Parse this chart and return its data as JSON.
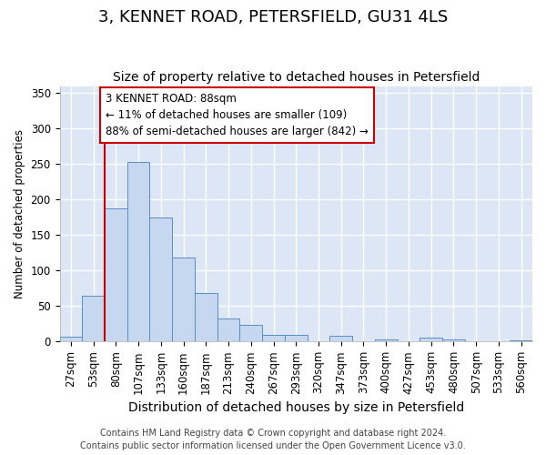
{
  "title": "3, KENNET ROAD, PETERSFIELD, GU31 4LS",
  "subtitle": "Size of property relative to detached houses in Petersfield",
  "xlabel": "Distribution of detached houses by size in Petersfield",
  "ylabel": "Number of detached properties",
  "footer_line1": "Contains HM Land Registry data © Crown copyright and database right 2024.",
  "footer_line2": "Contains public sector information licensed under the Open Government Licence v3.0.",
  "categories": [
    "27sqm",
    "53sqm",
    "80sqm",
    "107sqm",
    "133sqm",
    "160sqm",
    "187sqm",
    "213sqm",
    "240sqm",
    "267sqm",
    "293sqm",
    "320sqm",
    "347sqm",
    "373sqm",
    "400sqm",
    "427sqm",
    "453sqm",
    "480sqm",
    "507sqm",
    "533sqm",
    "560sqm"
  ],
  "values": [
    7,
    65,
    187,
    253,
    175,
    118,
    68,
    33,
    24,
    10,
    9,
    0,
    8,
    0,
    3,
    0,
    5,
    3,
    0,
    1,
    2
  ],
  "bar_color": "#c5d8f0",
  "bar_edge_color": "#5b8ec4",
  "background_color": "#dce6f5",
  "grid_color": "#ffffff",
  "annotation_line1": "3 KENNET ROAD: 88sqm",
  "annotation_line2": "← 11% of detached houses are smaller (109)",
  "annotation_line3": "88% of semi-detached houses are larger (842) →",
  "annotation_box_color": "#ffffff",
  "annotation_box_edge_color": "#cc0000",
  "vline_color": "#cc0000",
  "ylim": [
    0,
    360
  ],
  "yticks": [
    0,
    50,
    100,
    150,
    200,
    250,
    300,
    350
  ],
  "title_fontsize": 13,
  "subtitle_fontsize": 10,
  "xlabel_fontsize": 10,
  "ylabel_fontsize": 8.5,
  "tick_fontsize": 8.5,
  "annotation_fontsize": 8.5,
  "footer_fontsize": 7
}
